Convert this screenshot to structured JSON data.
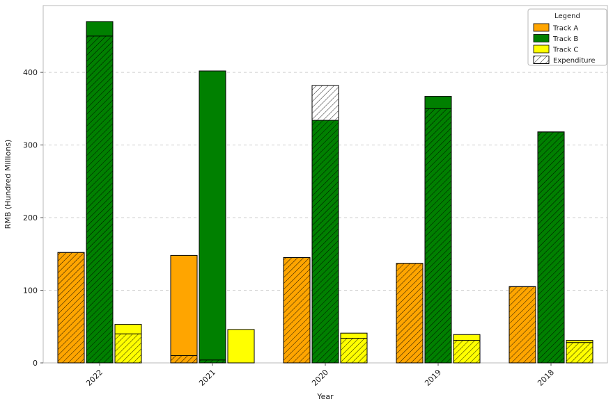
{
  "chart_data": {
    "type": "bar",
    "title": "",
    "xlabel": "Year",
    "ylabel": "RMB (Hundred Millions)",
    "categories": [
      "2022",
      "2021",
      "2020",
      "2019",
      "2018"
    ],
    "ylim": [
      0,
      492
    ],
    "yticks": [
      0,
      100,
      200,
      300,
      400
    ],
    "grid": true,
    "grid_style": "dashed",
    "legend": {
      "title": "Legend",
      "position": "upper right",
      "entries": [
        "Track A",
        "Track B",
        "Track C",
        "Expenditure"
      ]
    },
    "series": [
      {
        "name": "Track A",
        "color": "#FFA500",
        "values": [
          152,
          148,
          145,
          137,
          105
        ]
      },
      {
        "name": "Track B",
        "color": "#008000",
        "values": [
          470,
          402,
          334,
          367,
          318
        ]
      },
      {
        "name": "Track C",
        "color": "#FFFF00",
        "values": [
          53,
          46,
          41,
          39,
          31
        ]
      }
    ],
    "expenditure_overlay": {
      "name": "Expenditure",
      "style": "hatched",
      "hatch": "//",
      "facecolor": "none",
      "edgecolor": "#000000",
      "values_by_series": [
        {
          "series": "Track A",
          "values": [
            152,
            10,
            145,
            137,
            105
          ]
        },
        {
          "series": "Track B",
          "values": [
            450,
            4,
            382,
            350,
            318
          ]
        },
        {
          "series": "Track C",
          "values": [
            40,
            0,
            34,
            31,
            28
          ]
        }
      ]
    },
    "colors": {
      "background": "#ffffff",
      "gridline": "#cfcfcf",
      "spine": "#b9b9b9",
      "bar_edge": "#000000",
      "text": "#1a1a1a"
    }
  }
}
